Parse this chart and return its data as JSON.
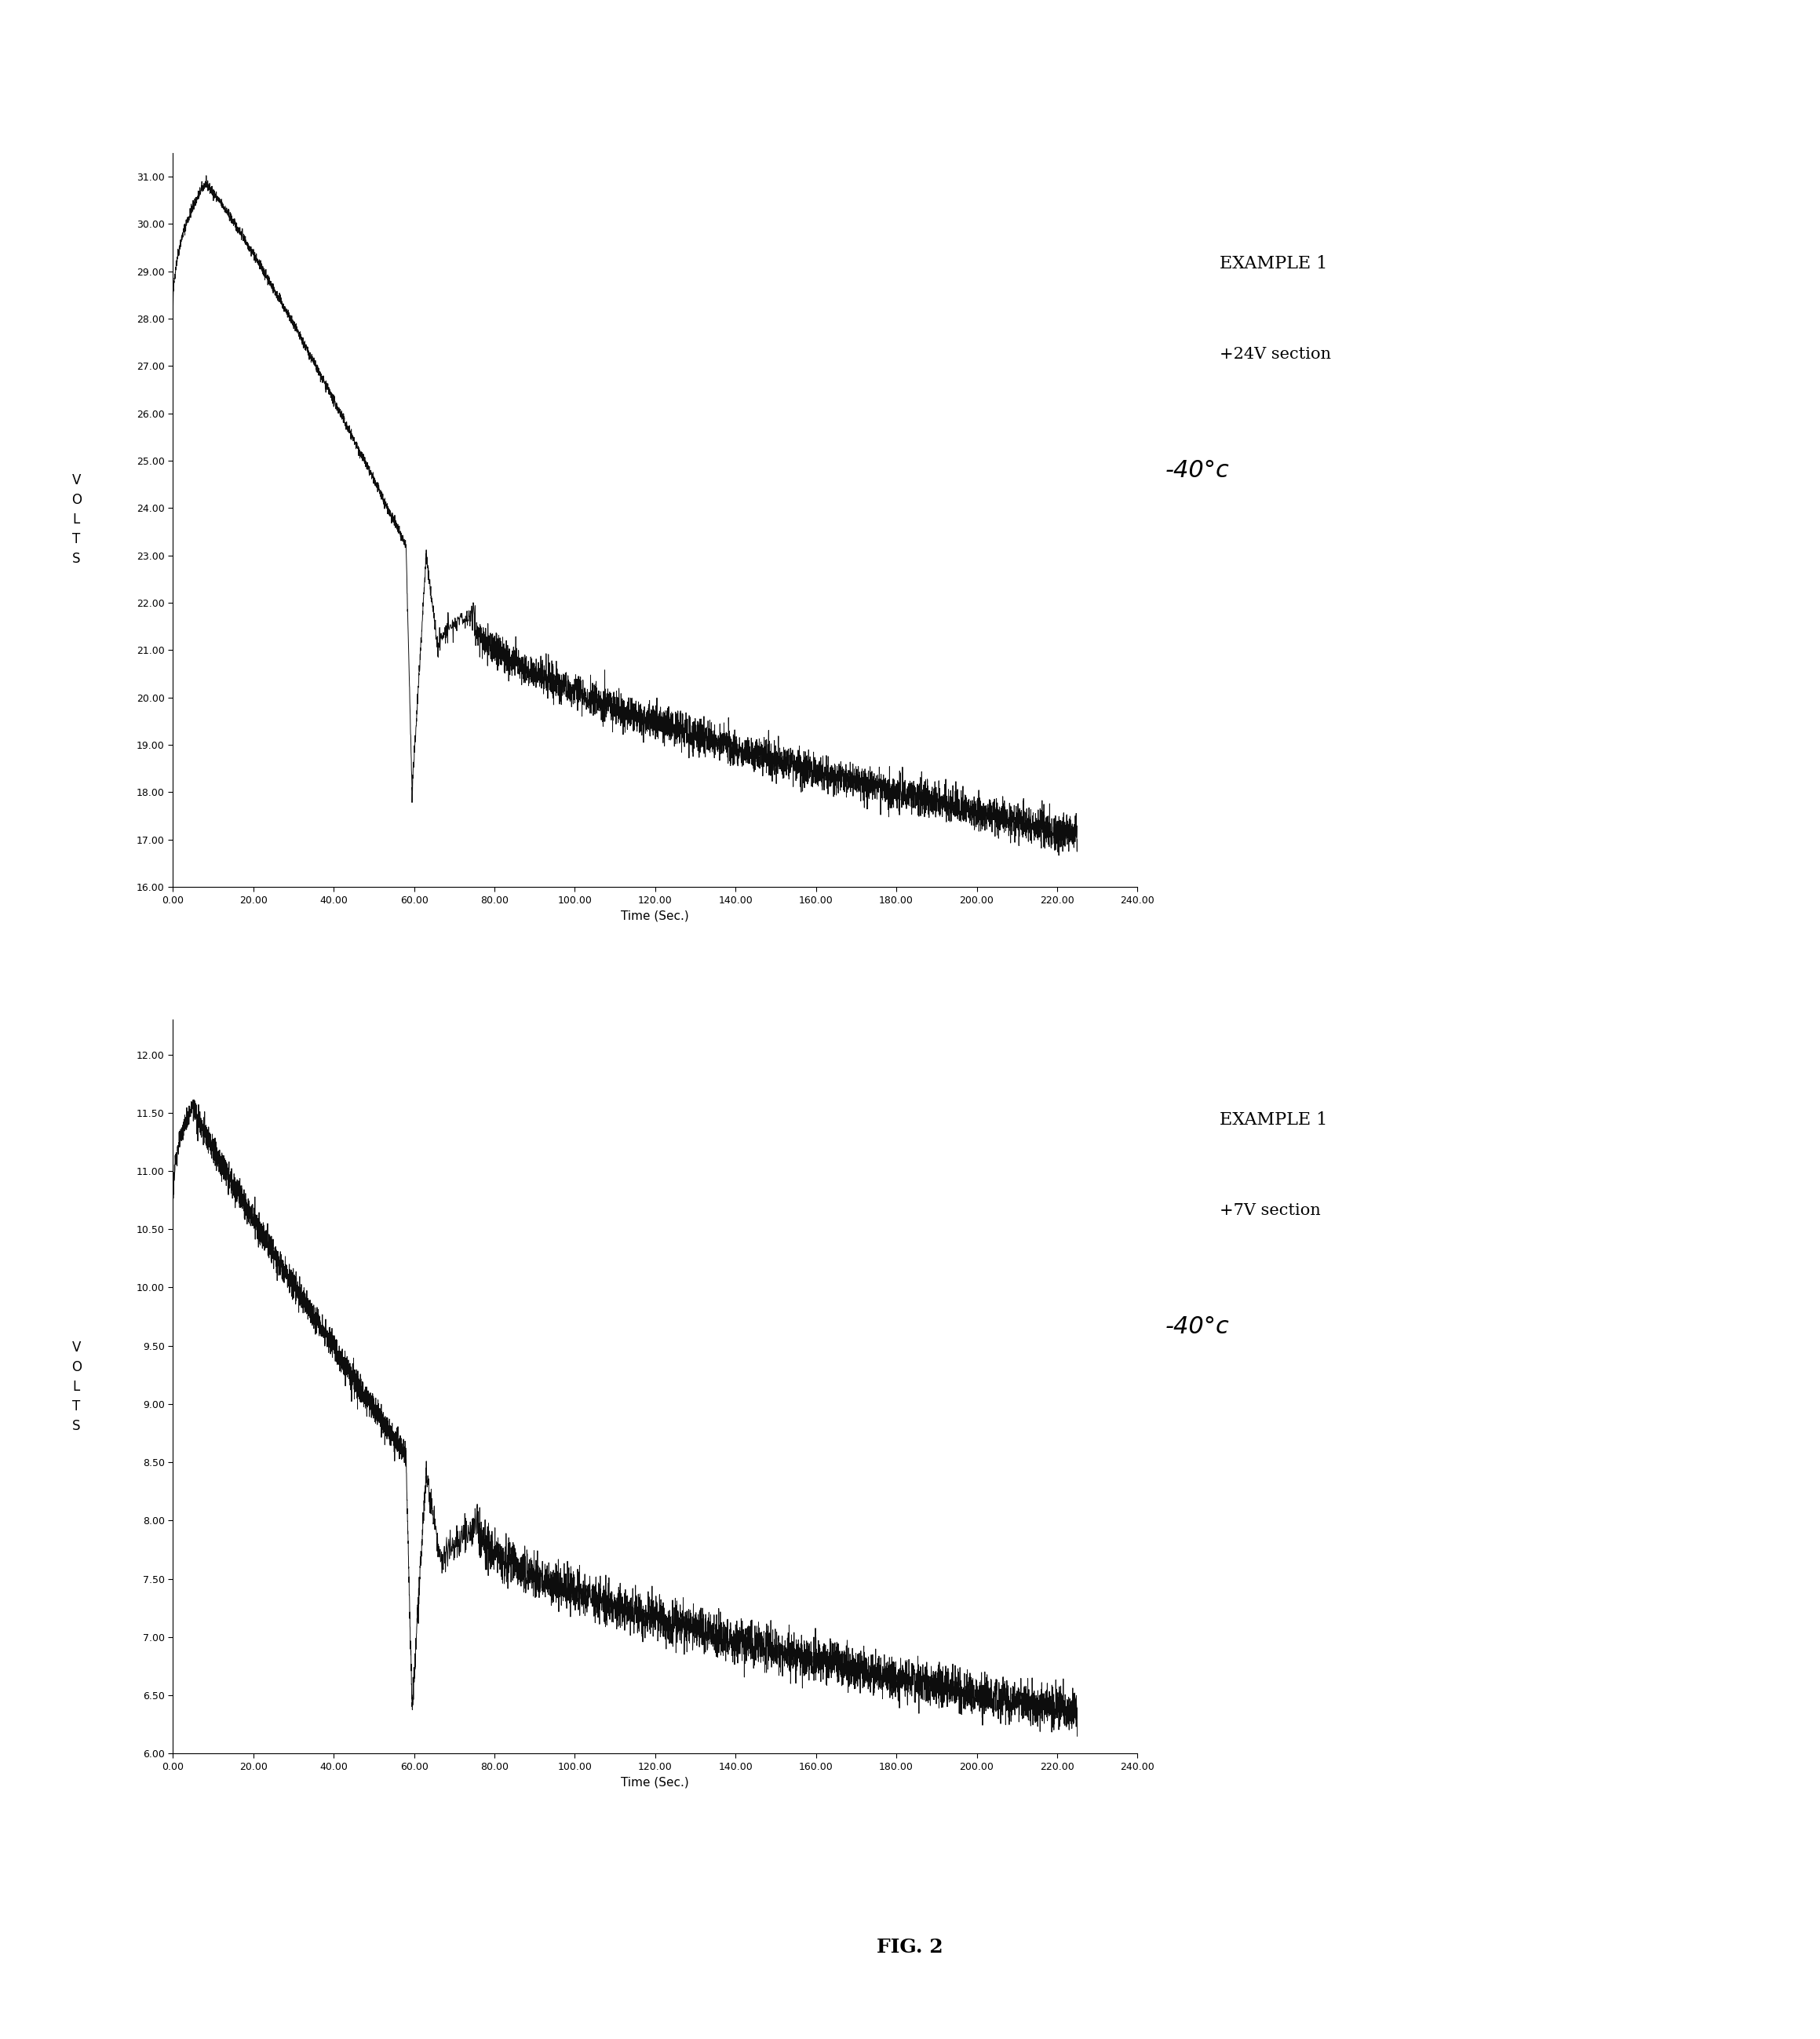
{
  "fig_width": 23.19,
  "fig_height": 25.98,
  "background_color": "#ffffff",
  "fig_label": "FIG. 2",
  "plot1": {
    "example_line1": "EXAMPLE 1",
    "example_line2": "+24V section",
    "example_line3": "-40°c",
    "ylabel": "V\nO\nL\nT\nS",
    "xlabel": "Time (Sec.)",
    "xlim": [
      0,
      240
    ],
    "ylim": [
      16.0,
      31.5
    ],
    "xticks": [
      0,
      20,
      40,
      60,
      80,
      100,
      120,
      140,
      160,
      180,
      200,
      220,
      240
    ],
    "xtick_labels": [
      "0.00",
      "20.00",
      "40.00",
      "60.00",
      "80.00",
      "100.00",
      "120.00",
      "140.00",
      "160.00",
      "180.00",
      "200.00",
      "220.00",
      "240.00"
    ],
    "yticks": [
      16,
      17,
      18,
      19,
      20,
      21,
      22,
      23,
      24,
      25,
      26,
      27,
      28,
      29,
      30,
      31
    ],
    "ytick_labels": [
      "16.00",
      "17.00",
      "18.00",
      "19.00",
      "20.00",
      "21.00",
      "22.00",
      "23.00",
      "24.00",
      "25.00",
      "26.00",
      "27.00",
      "28.00",
      "29.00",
      "30.00",
      "31.00"
    ],
    "line_color": "#000000"
  },
  "plot2": {
    "example_line1": "EXAMPLE 1",
    "example_line2": "+7V section",
    "example_line3": "-40°c",
    "ylabel": "V\nO\nL\nT\nS",
    "xlabel": "Time (Sec.)",
    "xlim": [
      0,
      240
    ],
    "ylim": [
      6.0,
      12.3
    ],
    "xticks": [
      0,
      20,
      40,
      60,
      80,
      100,
      120,
      140,
      160,
      180,
      200,
      220,
      240
    ],
    "xtick_labels": [
      "0.00",
      "20.00",
      "40.00",
      "60.00",
      "80.00",
      "100.00",
      "120.00",
      "140.00",
      "160.00",
      "180.00",
      "200.00",
      "220.00",
      "240.00"
    ],
    "yticks": [
      6.0,
      6.5,
      7.0,
      7.5,
      8.0,
      8.5,
      9.0,
      9.5,
      10.0,
      10.5,
      11.0,
      11.5,
      12.0
    ],
    "ytick_labels": [
      "6.00",
      "6.50",
      "7.00",
      "7.50",
      "8.00",
      "8.50",
      "9.00",
      "9.50",
      "10.00",
      "10.50",
      "11.00",
      "11.50",
      "12.00"
    ],
    "line_color": "#000000"
  }
}
